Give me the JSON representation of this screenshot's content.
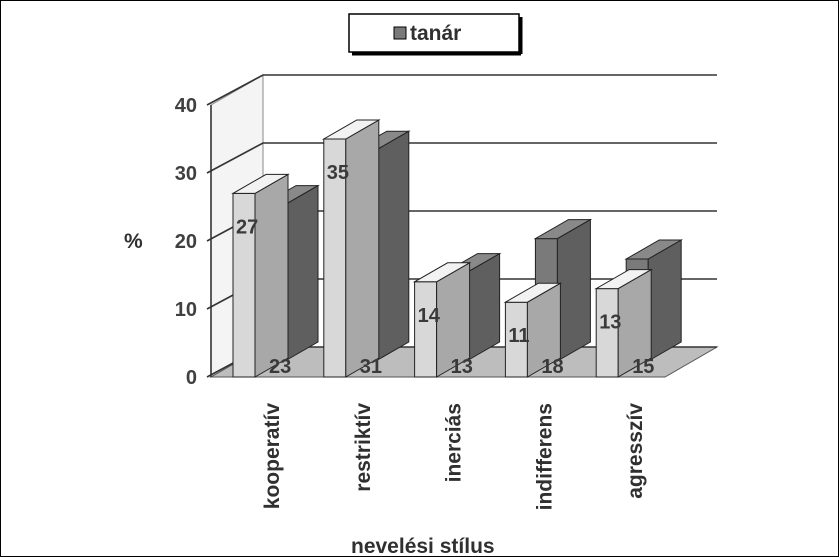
{
  "chart_data": {
    "type": "bar",
    "style": "3d-clustered",
    "categories": [
      "kooperatív",
      "restriktív",
      "inerciás",
      "indifferens",
      "agresszív"
    ],
    "series": [
      {
        "name": "",
        "color": "#d8d8d8",
        "values": [
          27,
          35,
          14,
          11,
          13
        ]
      },
      {
        "name": "tanár",
        "color": "#7a7a7a",
        "values": [
          23,
          31,
          13,
          18,
          15
        ]
      }
    ],
    "legend": {
      "label": "tanár",
      "position": "top"
    },
    "ylabel": "%",
    "xlabel": "nevelési stílus",
    "ylim": [
      0,
      40
    ],
    "yticks": [
      "0",
      "10",
      "20",
      "30",
      "40"
    ],
    "grid": true
  }
}
